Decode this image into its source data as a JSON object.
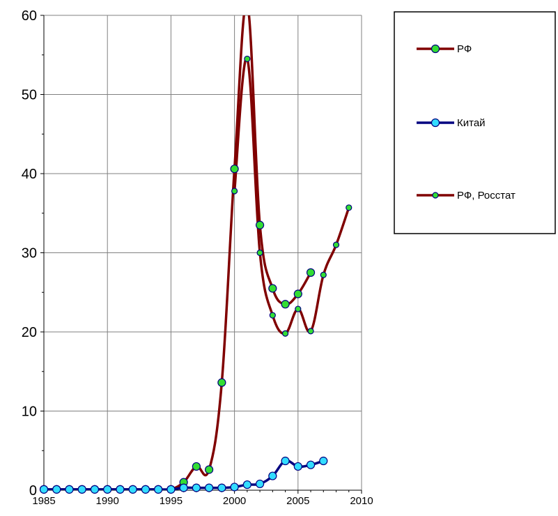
{
  "chart_data": {
    "type": "line",
    "title": "",
    "xlabel": "",
    "ylabel": "",
    "xlim": [
      1985,
      2010
    ],
    "ylim": [
      0,
      60
    ],
    "x_ticks": [
      1985,
      1990,
      1995,
      2000,
      2005,
      2010
    ],
    "y_ticks": [
      0,
      10,
      20,
      30,
      40,
      50,
      60
    ],
    "x_tick_labels": [
      "1985",
      "1990",
      "1995",
      "2000",
      "2005",
      "2010"
    ],
    "y_tick_labels": [
      "0",
      "10",
      "20",
      "30",
      "40",
      "50",
      "60"
    ],
    "grid": "vertical and horizontal major gridlines",
    "legend_position": "right",
    "series": [
      {
        "name": "РФ",
        "line_color": "#800000",
        "marker_color": "#33dd33",
        "marker": "large circle",
        "points": [
          [
            1985,
            0.1
          ],
          [
            1986,
            0.1
          ],
          [
            1987,
            0.1
          ],
          [
            1988,
            0.1
          ],
          [
            1989,
            0.1
          ],
          [
            1990,
            0.1
          ],
          [
            1991,
            0.1
          ],
          [
            1992,
            0.1
          ],
          [
            1993,
            0.1
          ],
          [
            1994,
            0.1
          ],
          [
            1995,
            0.1
          ],
          [
            1996,
            1.0
          ],
          [
            1997,
            3.0
          ],
          [
            1998,
            2.6
          ],
          [
            1999,
            13.6
          ],
          [
            2000,
            40.6
          ],
          [
            2001,
            61.5
          ],
          [
            2002,
            33.5
          ],
          [
            2003,
            25.5
          ],
          [
            2004,
            23.5
          ],
          [
            2005,
            24.8
          ],
          [
            2006,
            27.5
          ]
        ]
      },
      {
        "name": "Китай",
        "line_color": "#000080",
        "marker_color": "#33ddff",
        "marker": "large circle",
        "points": [
          [
            1985,
            0.1
          ],
          [
            1986,
            0.1
          ],
          [
            1987,
            0.1
          ],
          [
            1988,
            0.1
          ],
          [
            1989,
            0.1
          ],
          [
            1990,
            0.1
          ],
          [
            1991,
            0.1
          ],
          [
            1992,
            0.1
          ],
          [
            1993,
            0.1
          ],
          [
            1994,
            0.1
          ],
          [
            1995,
            0.1
          ],
          [
            1996,
            0.3
          ],
          [
            1997,
            0.3
          ],
          [
            1998,
            0.3
          ],
          [
            1999,
            0.3
          ],
          [
            2000,
            0.4
          ],
          [
            2001,
            0.7
          ],
          [
            2002,
            0.8
          ],
          [
            2003,
            1.8
          ],
          [
            2004,
            3.7
          ],
          [
            2005,
            3.0
          ],
          [
            2006,
            3.2
          ],
          [
            2007,
            3.7
          ]
        ]
      },
      {
        "name": "РФ, Росстат",
        "line_color": "#800000",
        "marker_color": "#33dd33",
        "marker": "small circle",
        "points": [
          [
            2000,
            37.8
          ],
          [
            2001,
            54.5
          ],
          [
            2002,
            30.0
          ],
          [
            2003,
            22.1
          ],
          [
            2004,
            19.8
          ],
          [
            2005,
            22.9
          ],
          [
            2006,
            20.1
          ],
          [
            2007,
            27.2
          ],
          [
            2008,
            31.0
          ],
          [
            2009,
            35.7
          ]
        ]
      }
    ]
  }
}
